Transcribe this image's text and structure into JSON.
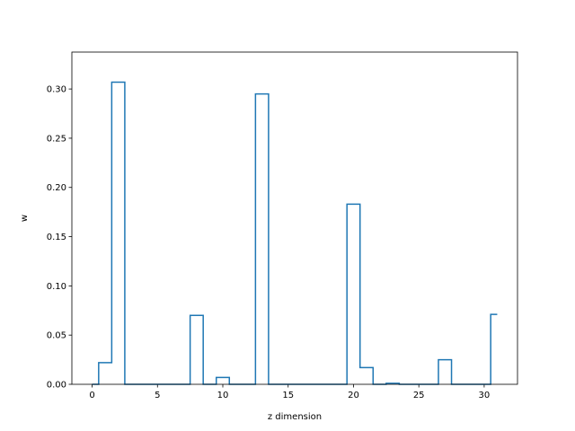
{
  "chart_data": {
    "type": "line",
    "drawstyle": "steps-mid",
    "xlabel": "z dimension",
    "ylabel": "w",
    "xlim": [
      -1.55,
      32.55
    ],
    "ylim": [
      0,
      0.3375
    ],
    "x_ticks": [
      0,
      5,
      10,
      15,
      20,
      25,
      30
    ],
    "y_ticks": [
      0.0,
      0.05,
      0.1,
      0.15,
      0.2,
      0.25,
      0.3
    ],
    "x_tick_labels": [
      "0",
      "5",
      "10",
      "15",
      "20",
      "25",
      "30"
    ],
    "y_tick_labels": [
      "0.00",
      "0.05",
      "0.10",
      "0.15",
      "0.20",
      "0.25",
      "0.30"
    ],
    "grid": false,
    "series": [
      {
        "color": "#1f77b4",
        "x": [
          0,
          1,
          2,
          3,
          4,
          5,
          6,
          7,
          8,
          9,
          10,
          11,
          12,
          13,
          14,
          15,
          16,
          17,
          18,
          19,
          20,
          21,
          22,
          23,
          24,
          25,
          26,
          27,
          28,
          29,
          30,
          31
        ],
        "y": [
          0.0,
          0.022,
          0.307,
          0.0,
          0.0,
          0.0,
          0.0,
          0.0,
          0.07,
          0.0,
          0.007,
          0.0,
          0.0,
          0.295,
          0.0,
          0.0,
          0.0,
          0.0,
          0.0,
          0.0,
          0.183,
          0.017,
          0.0,
          0.001,
          0.0,
          0.0,
          0.0,
          0.025,
          0.0,
          0.0,
          0.0,
          0.071
        ]
      }
    ]
  }
}
